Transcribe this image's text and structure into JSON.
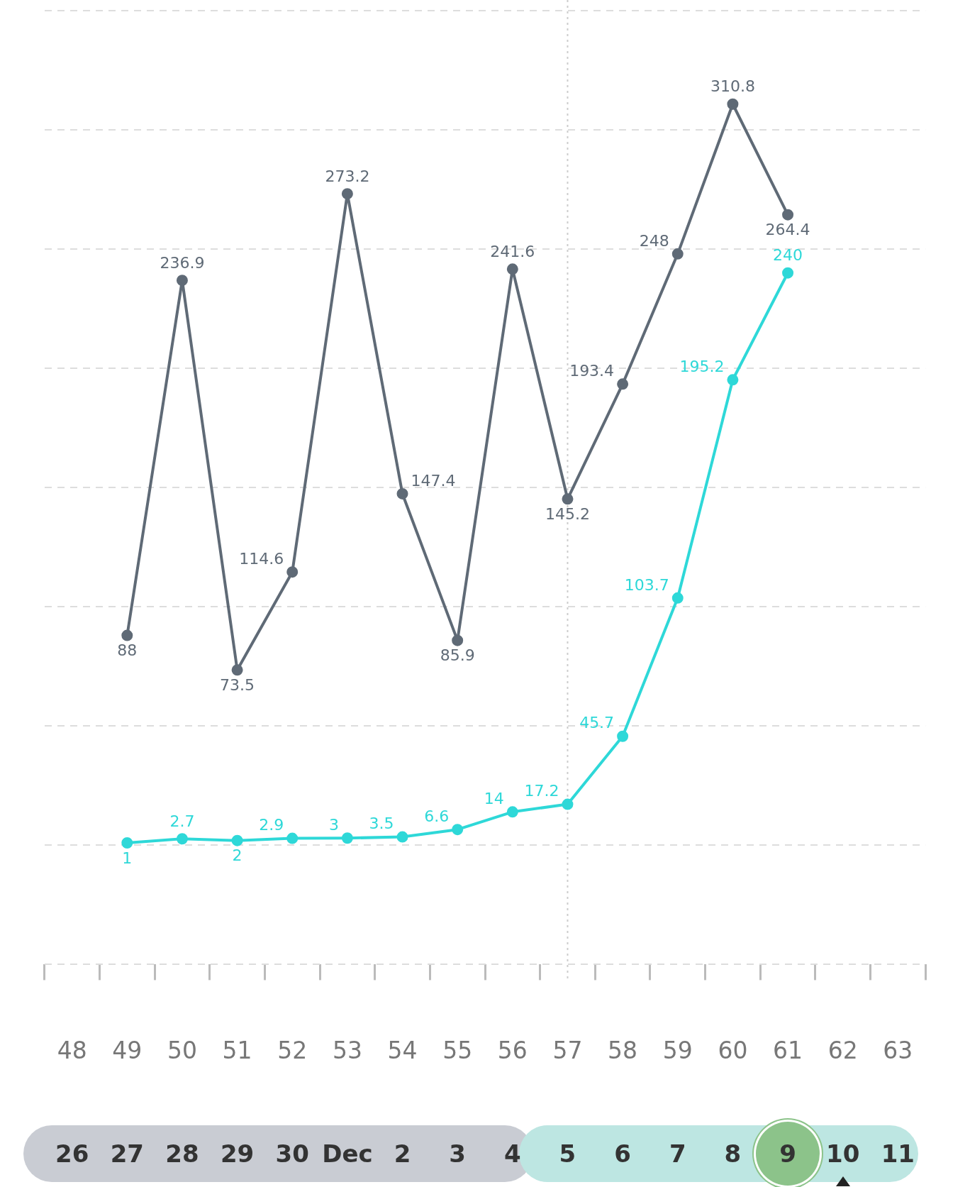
{
  "chart_data": {
    "type": "line",
    "categories": [
      "48",
      "49",
      "50",
      "51",
      "52",
      "53",
      "54",
      "55",
      "56",
      "57",
      "58",
      "59",
      "60",
      "61",
      "62",
      "63"
    ],
    "series": [
      {
        "color": "#5f6a76",
        "values": [
          null,
          88,
          236.9,
          73.5,
          114.6,
          273.2,
          147.4,
          85.9,
          241.6,
          145.2,
          193.4,
          248,
          310.8,
          264.4,
          null,
          null
        ]
      },
      {
        "color": "#2ed8d8",
        "values": [
          null,
          1,
          2.7,
          2,
          2.9,
          3,
          3.5,
          6.6,
          14,
          17.2,
          45.7,
          103.7,
          195.2,
          240,
          null,
          null
        ]
      }
    ],
    "data_labels": true,
    "grid": "y",
    "legend": false,
    "marker": "circle",
    "line_style": "solid",
    "tick_labels": "x",
    "ref_lines": [
      {
        "axis": "x",
        "value": "57",
        "color": "#cccccc",
        "line_style": "dotted"
      }
    ],
    "annotations": [
      "26",
      "27",
      "28",
      "29",
      "30",
      "Dec",
      "2",
      "3",
      "4",
      "5",
      "6",
      "7",
      "8",
      "9",
      "10",
      "11"
    ]
  }
}
